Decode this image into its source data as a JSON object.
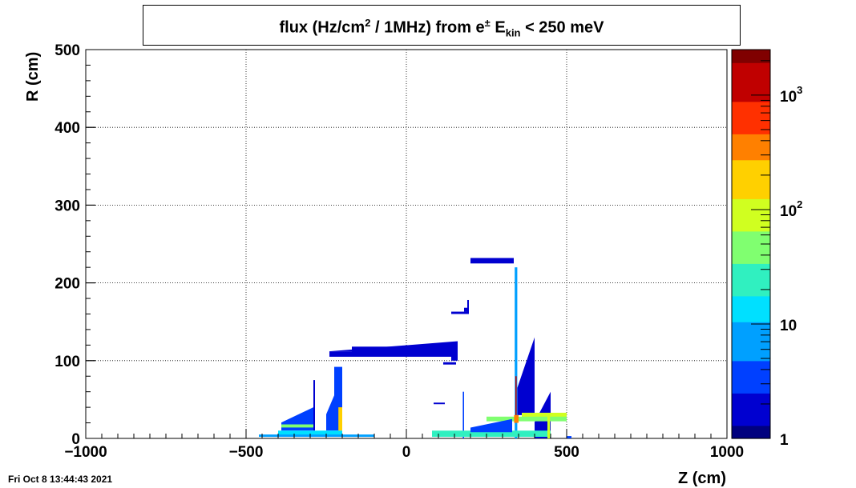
{
  "chart_data": {
    "type": "heatmap",
    "title_parts": {
      "pre": "flux (Hz/cm",
      "sup1": "2",
      "mid": " / 1MHz) from ",
      "particle": "e",
      "sup2": "±",
      "ekin": "E",
      "sub": "kin",
      "post": " < 250 meV"
    },
    "xlabel": "Z (cm)",
    "ylabel": "R (cm)",
    "xlim": [
      -1000,
      1000
    ],
    "ylim": [
      0,
      500
    ],
    "xticks": [
      -1000,
      -500,
      0,
      500,
      1000
    ],
    "xtick_labels": [
      "−1000",
      "−500",
      "0",
      "500",
      "1000"
    ],
    "yticks": [
      0,
      100,
      200,
      300,
      400,
      500
    ],
    "ytick_labels": [
      "0",
      "100",
      "200",
      "300",
      "400",
      "500"
    ],
    "grid": true,
    "log_z": true,
    "zlim": [
      1,
      2500
    ],
    "z_ticks": [
      {
        "value": 1,
        "base": "1",
        "exp": ""
      },
      {
        "value": 10,
        "base": "10",
        "exp": ""
      },
      {
        "value": 100,
        "base": "10",
        "exp": "2"
      },
      {
        "value": 1000,
        "base": "10",
        "exp": "3"
      }
    ],
    "colormap": [
      "#00007f",
      "#0000d0",
      "#0040ff",
      "#00a0ff",
      "#00e0ff",
      "#30f0c0",
      "#80ff70",
      "#d0ff20",
      "#ffd000",
      "#ff8000",
      "#ff3000",
      "#c00000",
      "#800000"
    ],
    "regions": [
      {
        "z": [
          346,
          400
        ],
        "r": [
          30,
          130
        ],
        "v": 2,
        "taper": "ramp-right"
      },
      {
        "z": [
          400,
          450
        ],
        "r": [
          0,
          60
        ],
        "v": 2,
        "taper": "ramp-right"
      },
      {
        "z": [
          360,
          500
        ],
        "r": [
          25,
          33
        ],
        "v": 120
      },
      {
        "z": [
          250,
          500
        ],
        "r": [
          22,
          28
        ],
        "v": 60
      },
      {
        "z": [
          338,
          346
        ],
        "r": [
          0,
          220
        ],
        "v": 8
      },
      {
        "z": [
          340,
          344
        ],
        "r": [
          20,
          80
        ],
        "v": 1000
      },
      {
        "z": [
          336,
          350
        ],
        "r": [
          20,
          30
        ],
        "v": 300
      },
      {
        "z": [
          500,
          515
        ],
        "r": [
          0,
          3
        ],
        "v": 3
      },
      {
        "z": [
          200,
          335
        ],
        "r": [
          225,
          232
        ],
        "v": 2
      },
      {
        "z": [
          -240,
          160
        ],
        "r": [
          105,
          112
        ],
        "v": 2
      },
      {
        "z": [
          -240,
          160
        ],
        "r": [
          112,
          125
        ],
        "v": 1.6,
        "taper": "ramp-right-up"
      },
      {
        "z": [
          -170,
          160
        ],
        "r": [
          108,
          118
        ],
        "v": 2
      },
      {
        "z": [
          140,
          160
        ],
        "r": [
          100,
          108
        ],
        "v": 2
      },
      {
        "z": [
          115,
          155
        ],
        "r": [
          95,
          98
        ],
        "v": 2
      },
      {
        "z": [
          140,
          190
        ],
        "r": [
          160,
          163
        ],
        "v": 2
      },
      {
        "z": [
          190,
          195
        ],
        "r": [
          160,
          178
        ],
        "v": 2
      },
      {
        "z": [
          180,
          190
        ],
        "r": [
          163,
          168
        ],
        "v": 2
      },
      {
        "z": [
          85,
          120
        ],
        "r": [
          44,
          46
        ],
        "v": 2
      },
      {
        "z": [
          176,
          180
        ],
        "r": [
          0,
          60
        ],
        "v": 3
      },
      {
        "z": [
          -390,
          -290
        ],
        "r": [
          10,
          40
        ],
        "v": 3,
        "taper": "ramp-right"
      },
      {
        "z": [
          -390,
          -290
        ],
        "r": [
          14,
          18
        ],
        "v": 60
      },
      {
        "z": [
          -290,
          -285
        ],
        "r": [
          10,
          75
        ],
        "v": 2
      },
      {
        "z": [
          -250,
          -210
        ],
        "r": [
          10,
          70
        ],
        "v": 3,
        "taper": "ramp-right"
      },
      {
        "z": [
          -225,
          -200
        ],
        "r": [
          35,
          92
        ],
        "v": 3
      },
      {
        "z": [
          -212,
          -200
        ],
        "r": [
          10,
          40
        ],
        "v": 200
      },
      {
        "z": [
          -400,
          -200
        ],
        "r": [
          3,
          10
        ],
        "v": 10
      },
      {
        "z": [
          -460,
          -100
        ],
        "r": [
          2,
          5
        ],
        "v": 6
      },
      {
        "z": [
          80,
          450
        ],
        "r": [
          2,
          10
        ],
        "v": 20
      },
      {
        "z": [
          200,
          330
        ],
        "r": [
          8,
          25
        ],
        "v": 3,
        "taper": "ramp-right"
      },
      {
        "z": [
          440,
          448
        ],
        "r": [
          0,
          30
        ],
        "v": 80
      }
    ]
  },
  "footer": {
    "timestamp": "Fri Oct  8 13:44:43 2021"
  }
}
